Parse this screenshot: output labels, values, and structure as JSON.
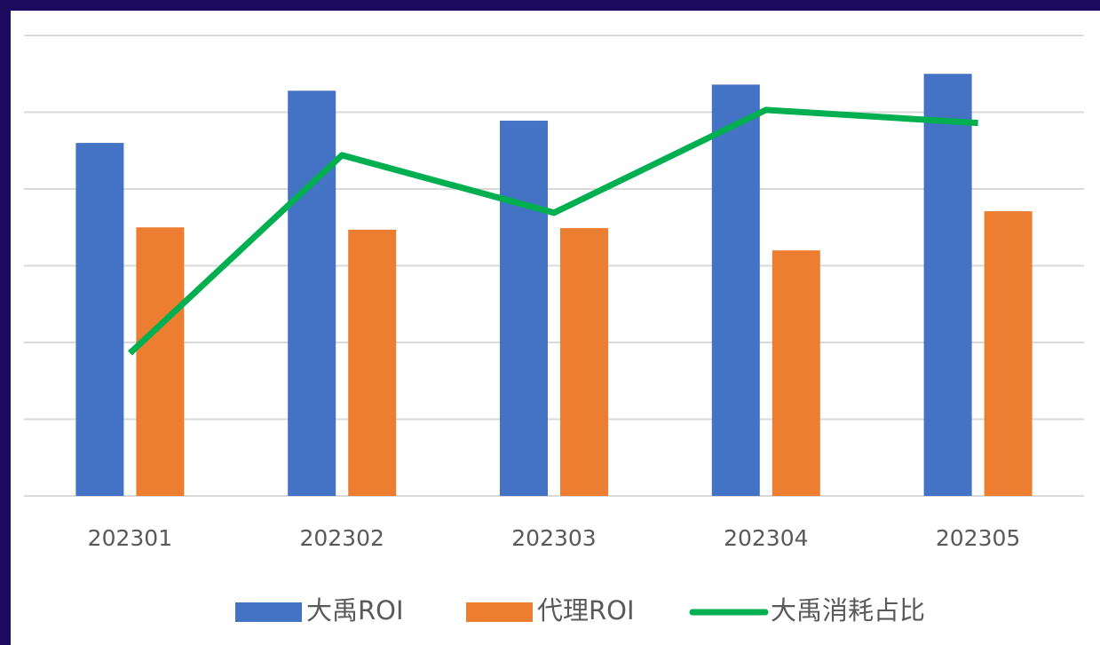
{
  "chart_data": {
    "type": "bar-line",
    "categories": [
      "202301",
      "202302",
      "202303",
      "202304",
      "202305"
    ],
    "series": [
      {
        "name": "大禹ROI",
        "type": "bar",
        "color": "#4472c4",
        "values": [
          4.6,
          5.28,
          4.89,
          5.36,
          5.5
        ]
      },
      {
        "name": "代理ROI",
        "type": "bar",
        "color": "#ed7d31",
        "values": [
          3.5,
          3.47,
          3.49,
          3.2,
          3.71
        ]
      },
      {
        "name": "大禹消耗占比",
        "type": "line",
        "color": "#00b050",
        "values": [
          1.86,
          4.44,
          3.69,
          5.03,
          4.86
        ]
      }
    ],
    "ylim": [
      0,
      6
    ],
    "yticks": [
      0,
      1,
      2,
      3,
      4,
      5,
      6
    ],
    "grid": true,
    "legend": "bottom"
  }
}
